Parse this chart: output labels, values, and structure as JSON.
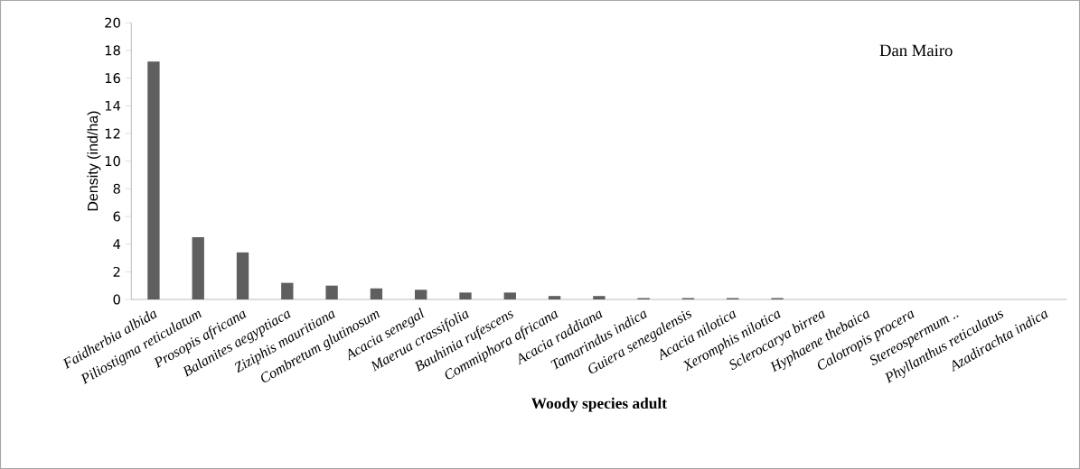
{
  "chart_data": {
    "type": "bar",
    "xlabel": "Woody species adult",
    "ylabel": "Density (ind/ha)",
    "annotations": [
      "Dan Mairo"
    ],
    "categories": [
      "Faidherbia albida",
      "Piliostigma reticulatum",
      "Prosopis africana",
      "Balanites aegyptiaca",
      "Ziziphis mauritiana",
      "Combretum glutinosum",
      "Acacia senegal",
      "Maerua crassifolia",
      "Bauhinia rufescens",
      "Commiphora africana",
      "Acacia raddiana",
      "Tamarindus indica",
      "Guiera senegalensis",
      "Acacia nilotica",
      "Xeromphis nilotica",
      "Sclerocarya birrea",
      "Hyphaene thebaica",
      "Calotropis procera",
      "Stereospermum ..",
      "Phyllanthus reticulatus",
      "Azadirachta indica"
    ],
    "values": [
      17.2,
      4.5,
      3.4,
      1.2,
      1.0,
      0.8,
      0.7,
      0.5,
      0.5,
      0.25,
      0.25,
      0.1,
      0.1,
      0.1,
      0.1,
      0,
      0,
      0,
      0,
      0,
      0
    ],
    "color": "#5f5f5f",
    "ylim": [
      0,
      20
    ],
    "yticks": [
      0,
      2,
      4,
      6,
      8,
      10,
      12,
      14,
      16,
      18,
      20
    ],
    "grid": false
  }
}
